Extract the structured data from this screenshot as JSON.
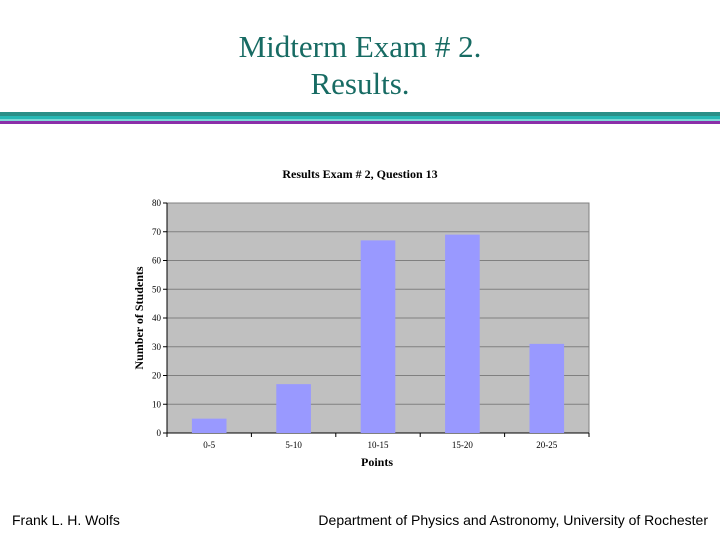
{
  "slide": {
    "title_line1": "Midterm Exam # 2.",
    "title_line2": "Results.",
    "title_color": "#176b63",
    "rule_colors": [
      "#2b8f88",
      "#27b8b4",
      "#7ed8d6",
      "#8b2fa8"
    ]
  },
  "footer": {
    "left": "Frank L. H. Wolfs",
    "right": "Department of Physics and Astronomy, University of Rochester"
  },
  "chart_data": {
    "type": "bar",
    "title": "Results Exam # 2, Question 13",
    "xlabel": "Points",
    "ylabel": "Number of Students",
    "categories": [
      "0-5",
      "5-10",
      "10-15",
      "15-20",
      "20-25"
    ],
    "values": [
      5,
      17,
      67,
      69,
      31
    ],
    "ylim": [
      0,
      80
    ],
    "yticks": [
      0,
      10,
      20,
      30,
      40,
      50,
      60,
      70,
      80
    ],
    "grid": true,
    "legend": "none",
    "bar_color": "#9999ff",
    "plot_background": "#c0c0c0"
  }
}
